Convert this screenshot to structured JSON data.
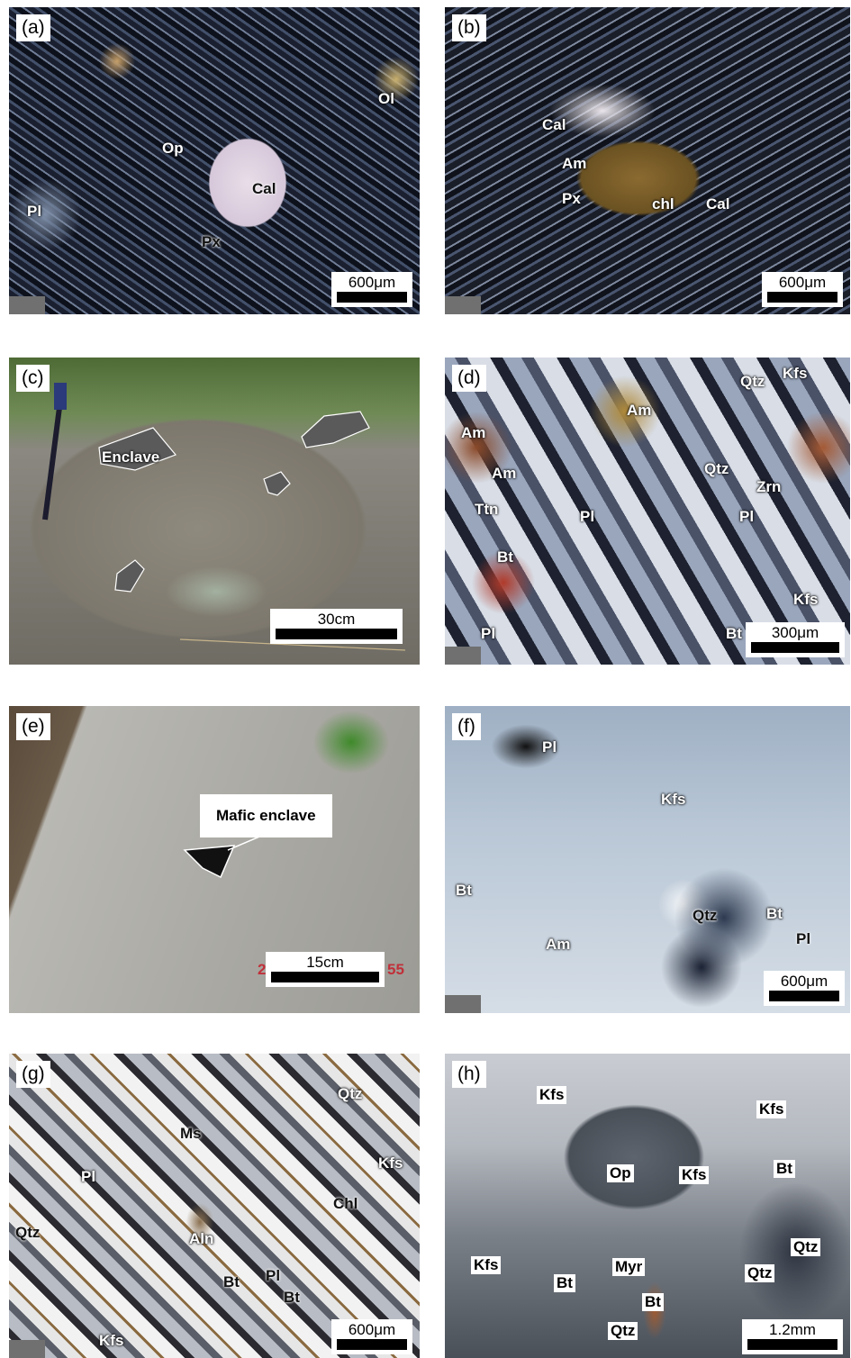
{
  "panels": {
    "a": {
      "tag": "(a)",
      "scale": "600μm",
      "labels": [
        "Op",
        "Cal",
        "Px",
        "Pl",
        "Ol"
      ]
    },
    "b": {
      "tag": "(b)",
      "scale": "600μm",
      "labels": [
        "Cal",
        "Am",
        "Px",
        "chl",
        "Cal"
      ]
    },
    "c": {
      "tag": "(c)",
      "scale": "30cm",
      "labels": [
        "Enclave"
      ]
    },
    "d": {
      "tag": "(d)",
      "scale": "300μm",
      "labels": [
        "Am",
        "Am",
        "Am",
        "Ttn",
        "Bt",
        "Pl",
        "Qtz",
        "Kfs",
        "Qtz",
        "Zrn",
        "Pl",
        "Pl",
        "Kfs",
        "Bt",
        "Pl"
      ]
    },
    "e": {
      "tag": "(e)",
      "scale": "15cm",
      "callout": "Mafic enclave",
      "stamp_left": "2",
      "stamp_right": "55"
    },
    "f": {
      "tag": "(f)",
      "scale": "600μm",
      "labels": [
        "Pl",
        "Kfs",
        "Bt",
        "Am",
        "Qtz",
        "Bt",
        "Pl"
      ]
    },
    "g": {
      "tag": "(g)",
      "scale": "600μm",
      "labels": [
        "Qtz",
        "Ms",
        "Pl",
        "Kfs",
        "Chl",
        "Qtz",
        "Aln",
        "Pl",
        "Bt",
        "Bt",
        "Kfs"
      ]
    },
    "h": {
      "tag": "(h)",
      "scale": "1.2mm",
      "labels": [
        "Kfs",
        "Kfs",
        "Op",
        "Kfs",
        "Bt",
        "Kfs",
        "Myr",
        "Bt",
        "Qtz",
        "Qtz",
        "Bt",
        "Qtz"
      ]
    }
  },
  "colors": {
    "xpl_dark": "#1e2433",
    "outcrop_gray": "#8a8880",
    "vegetation_green": "#3f6a2a"
  }
}
